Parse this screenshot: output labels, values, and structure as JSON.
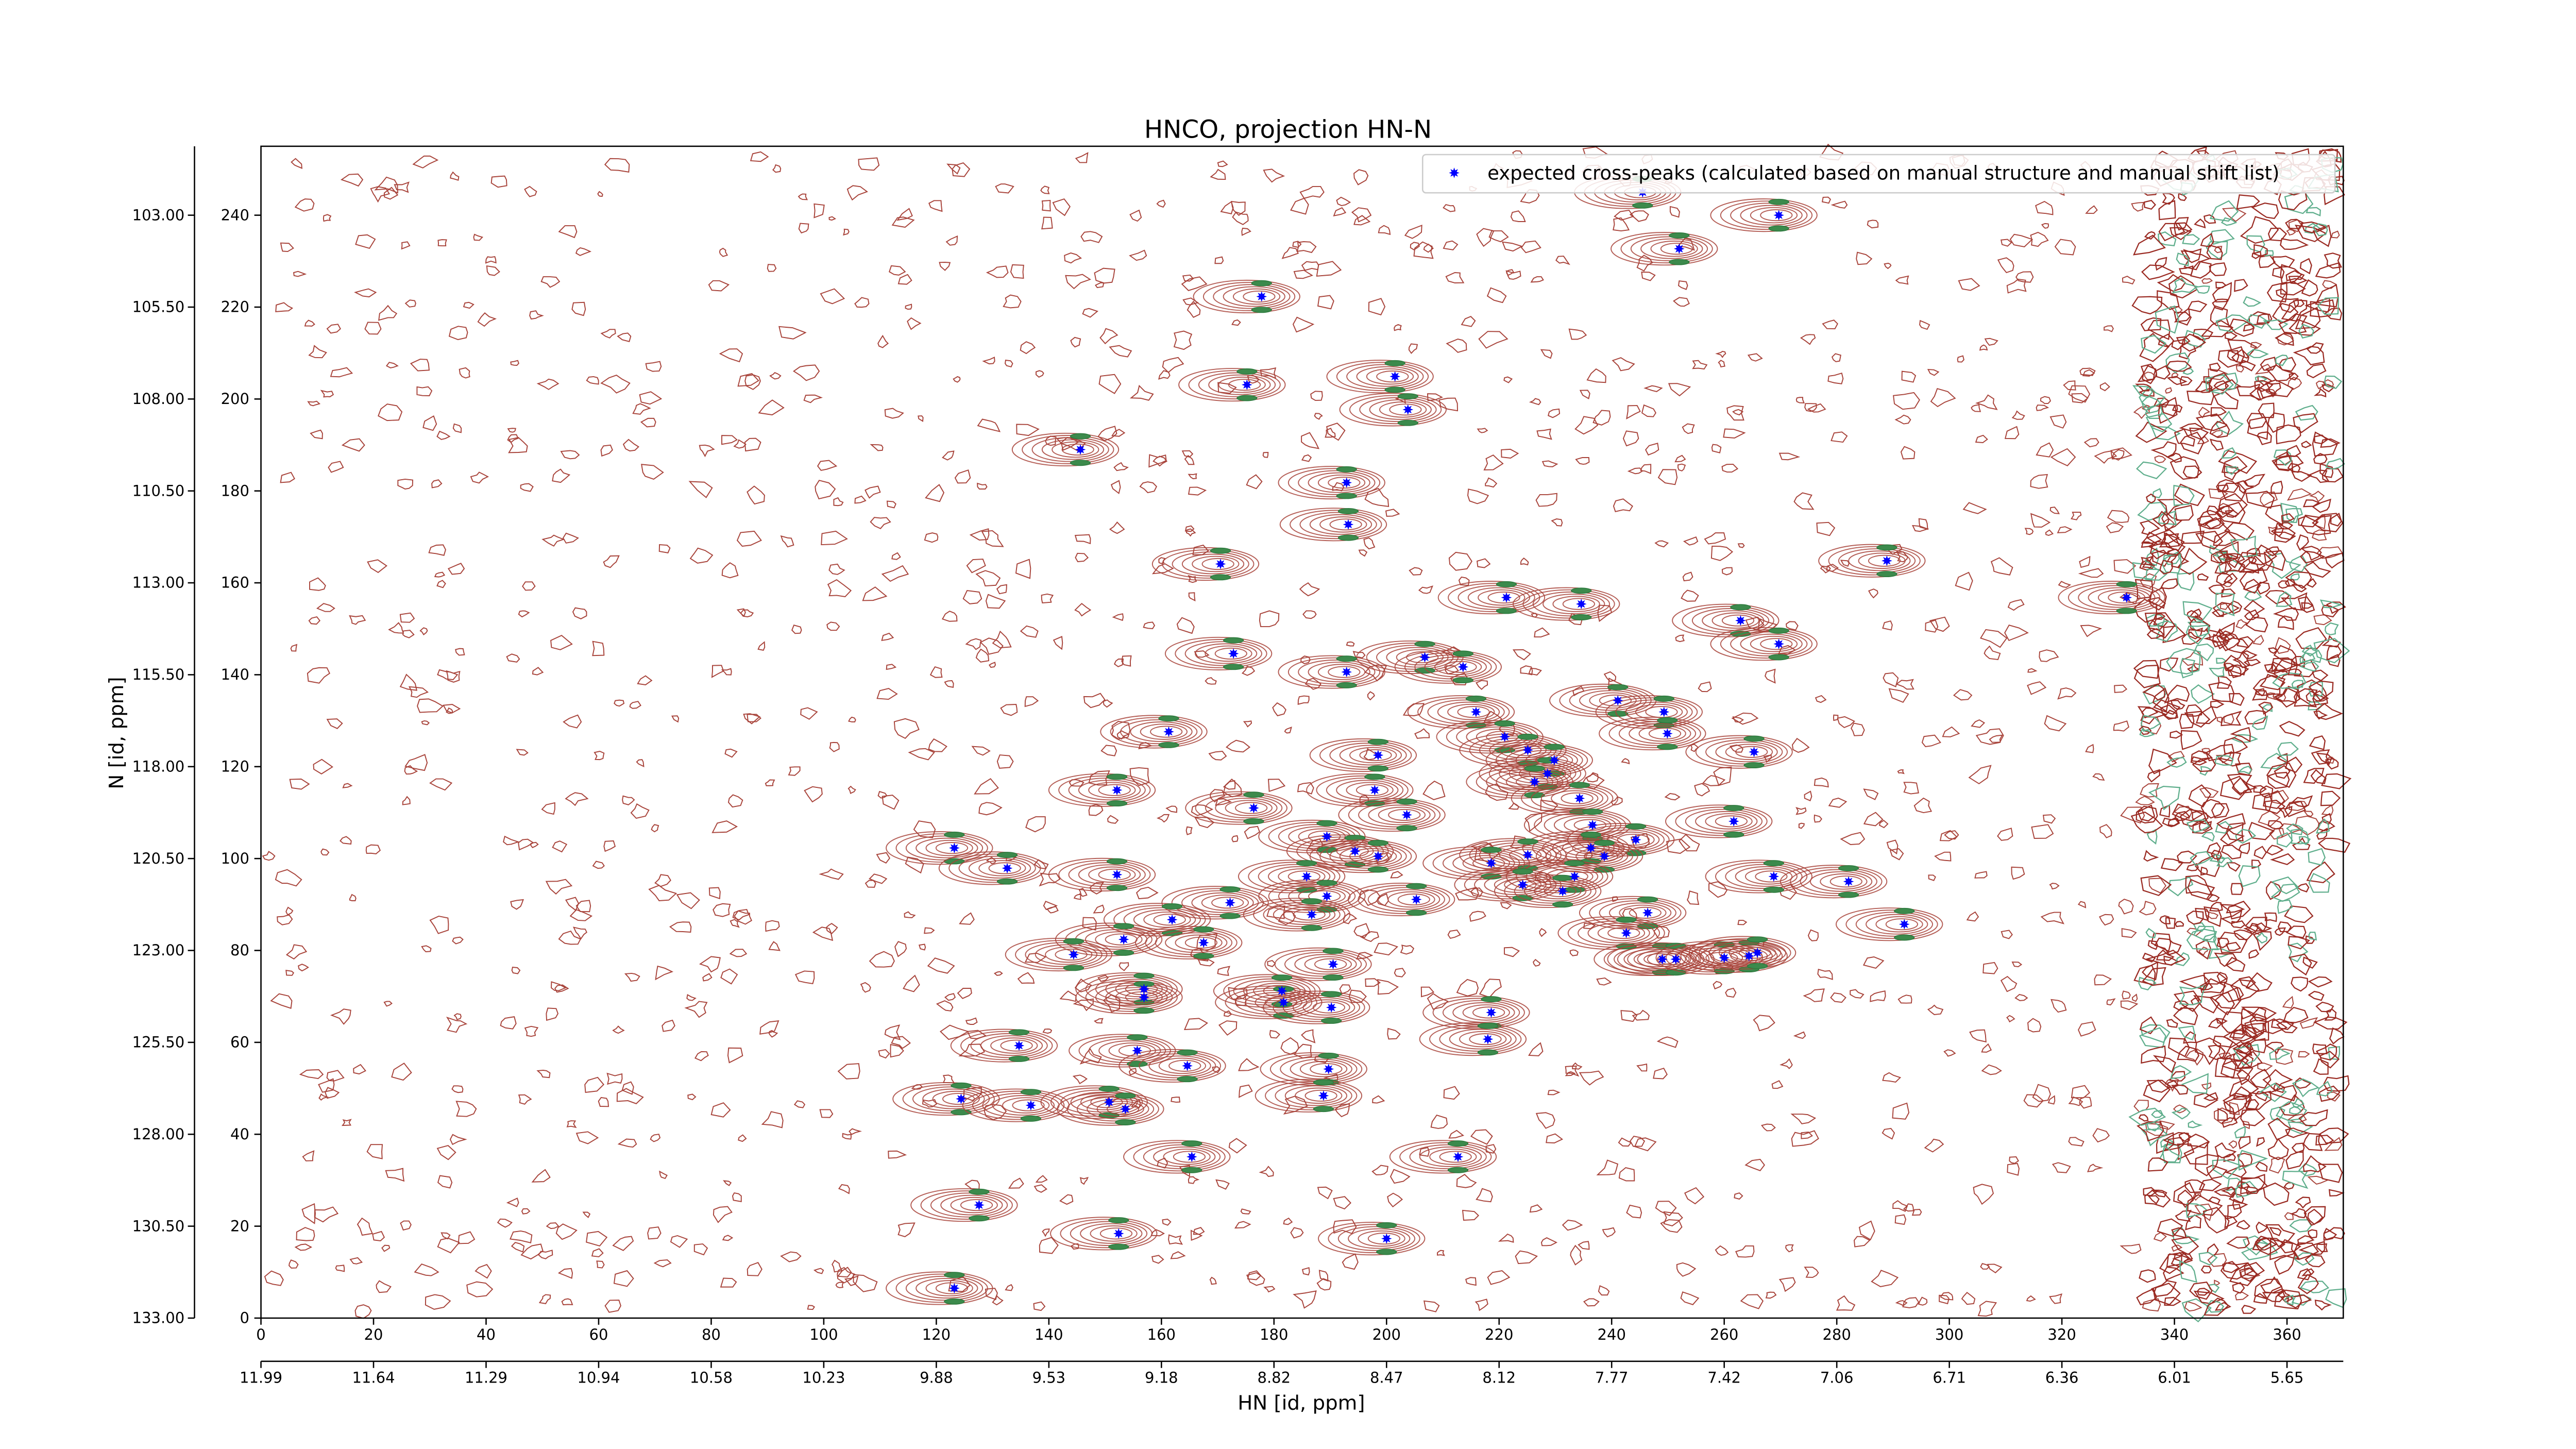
{
  "chart_data": {
    "type": "scatter",
    "title": "HNCO, projection HN-N",
    "x_label": "HN [id, ppm]",
    "y_label": "N [id, ppm]",
    "xlim": [
      0,
      370
    ],
    "ylim": [
      0,
      255
    ],
    "xticks": [
      0,
      20,
      40,
      60,
      80,
      100,
      120,
      140,
      160,
      180,
      200,
      220,
      240,
      260,
      280,
      300,
      320,
      340,
      360
    ],
    "yticks": [
      0,
      20,
      40,
      60,
      80,
      100,
      120,
      140,
      160,
      180,
      200,
      220,
      240
    ],
    "x2ticks": [
      {
        "value": 0,
        "label": "11.99"
      },
      {
        "value": 20,
        "label": "11.64"
      },
      {
        "value": 40,
        "label": "11.29"
      },
      {
        "value": 60,
        "label": "10.94"
      },
      {
        "value": 80,
        "label": "10.58"
      },
      {
        "value": 100,
        "label": "10.23"
      },
      {
        "value": 120,
        "label": "9.88"
      },
      {
        "value": 140,
        "label": "9.53"
      },
      {
        "value": 160,
        "label": "9.18"
      },
      {
        "value": 180,
        "label": "8.82"
      },
      {
        "value": 200,
        "label": "8.47"
      },
      {
        "value": 220,
        "label": "8.12"
      },
      {
        "value": 240,
        "label": "7.77"
      },
      {
        "value": 260,
        "label": "7.42"
      },
      {
        "value": 280,
        "label": "7.06"
      },
      {
        "value": 300,
        "label": "6.71"
      },
      {
        "value": 320,
        "label": "6.36"
      },
      {
        "value": 340,
        "label": "6.01"
      },
      {
        "value": 360,
        "label": "5.65"
      }
    ],
    "y2ticks": [
      {
        "value": 240,
        "label": "103.00"
      },
      {
        "value": 220,
        "label": "105.50"
      },
      {
        "value": 200,
        "label": "108.00"
      },
      {
        "value": 180,
        "label": "110.50"
      },
      {
        "value": 160,
        "label": "113.00"
      },
      {
        "value": 140,
        "label": "115.50"
      },
      {
        "value": 120,
        "label": "118.00"
      },
      {
        "value": 100,
        "label": "120.50"
      },
      {
        "value": 80,
        "label": "123.00"
      },
      {
        "value": 60,
        "label": "125.50"
      },
      {
        "value": 40,
        "label": "128.00"
      },
      {
        "value": 20,
        "label": "130.50"
      },
      {
        "value": 0,
        "label": "133.00"
      }
    ],
    "legend_position": "upper right",
    "series": [
      {
        "name": "expected cross-peaks (calculated based on manual structure and manual shift list)",
        "color": "#0000ff",
        "x": [
          245.5,
          269.7,
          252,
          177.8,
          175.2,
          201.5,
          203.8,
          145.6,
          192.9,
          193.2,
          288.9,
          170.5,
          221.3,
          234.6,
          331.5,
          262.9,
          269.7,
          172.8,
          206.8,
          213.6,
          192.9,
          241.1,
          215.9,
          249.3,
          161.3,
          221,
          249.9,
          225.1,
          265.3,
          198.5,
          229.8,
          228.6,
          226.3,
          152.1,
          197.9,
          234.3,
          176.4,
          203.6,
          261.7,
          236.6,
          189.4,
          244.3,
          123.2,
          194.4,
          236.3,
          198.5,
          238.7,
          225.1,
          218.6,
          132.6,
          152.1,
          185.8,
          233.4,
          268.8,
          282.1,
          224.2,
          231.3,
          189.4,
          205.3,
          172.2,
          161.9,
          186.7,
          246.4,
          292,
          153.3,
          167.5,
          242.6,
          144.4,
          249,
          251.4,
          260,
          264.4,
          265.9,
          190.5,
          156.9,
          156.9,
          181.4,
          181.7,
          190.2,
          218.6,
          218,
          134.7,
          155.7,
          164.6,
          189.7,
          124.4,
          188.8,
          136.8,
          150.7,
          153.6,
          165.4,
          212.7,
          127.6,
          152.4,
          200,
          123.2
        ],
        "values": [
          245,
          240,
          232.7,
          222.3,
          203.1,
          204.9,
          197.7,
          189,
          181.8,
          172.7,
          164.8,
          164.1,
          156.8,
          155.4,
          156.8,
          151.8,
          146.7,
          144.6,
          143.8,
          141.7,
          140.6,
          134.4,
          131.9,
          131.9,
          127.6,
          126.5,
          127.2,
          123.6,
          123.2,
          122.5,
          121.4,
          118.5,
          116.7,
          114.9,
          114.9,
          113.1,
          111,
          109.5,
          108.1,
          107.3,
          104.8,
          104.1,
          102.3,
          101.6,
          102.3,
          100.5,
          100.5,
          100.8,
          99,
          97.9,
          96.5,
          96.1,
          96.1,
          96.1,
          95,
          94.3,
          92.9,
          91.8,
          91.1,
          90.4,
          86.7,
          87.8,
          88.2,
          85.7,
          82.4,
          81.7,
          83.8,
          79.1,
          78.1,
          78.1,
          78.4,
          78.8,
          79.5,
          77,
          71.6,
          69.8,
          71.2,
          68.7,
          67.6,
          66.5,
          60.7,
          59.3,
          58.2,
          54.9,
          54.2,
          47.7,
          48.4,
          46.3,
          47,
          45.5,
          35.1,
          35.1,
          24.6,
          18.4,
          17.3,
          6.5
        ]
      }
    ]
  }
}
